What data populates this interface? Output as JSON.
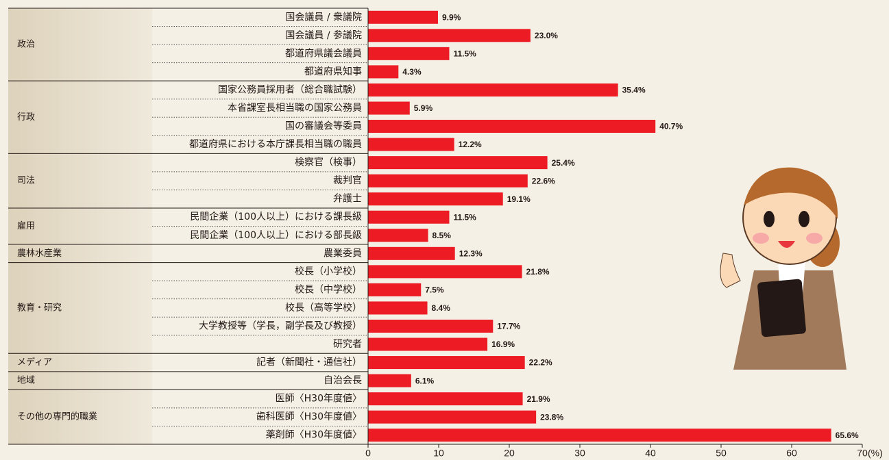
{
  "chart_data": {
    "type": "bar",
    "orientation": "horizontal",
    "color": "#ed1c24",
    "xlim": [
      0,
      70
    ],
    "xticks": [
      0,
      10,
      20,
      30,
      40,
      50,
      60,
      70
    ],
    "x_unit": "(%)",
    "groups": [
      {
        "name": "政治",
        "categories": [
          "国会議員 / 衆議院",
          "国会議員 / 参議院",
          "都道府県議会議員",
          "都道府県知事"
        ],
        "values": [
          9.9,
          23.0,
          11.5,
          4.3
        ],
        "value_labels": [
          "9.9%",
          "23.0%",
          "11.5%",
          "4.3%"
        ]
      },
      {
        "name": "行政",
        "categories": [
          "国家公務員採用者（総合職試験）",
          "本省課室長相当職の国家公務員",
          "国の審議会等委員",
          "都道府県における本庁課長相当職の職員"
        ],
        "values": [
          35.4,
          5.9,
          40.7,
          12.2
        ],
        "value_labels": [
          "35.4%",
          "5.9%",
          "40.7%",
          "12.2%"
        ]
      },
      {
        "name": "司法",
        "categories": [
          "検察官（検事）",
          "裁判官",
          "弁護士"
        ],
        "values": [
          25.4,
          22.6,
          19.1
        ],
        "value_labels": [
          "25.4%",
          "22.6%",
          "19.1%"
        ]
      },
      {
        "name": "雇用",
        "categories": [
          "民間企業（100人以上）における課長級",
          "民間企業（100人以上）における部長級"
        ],
        "values": [
          11.5,
          8.5
        ],
        "value_labels": [
          "11.5%",
          "8.5%"
        ]
      },
      {
        "name": "農林水産業",
        "categories": [
          "農業委員"
        ],
        "values": [
          12.3
        ],
        "value_labels": [
          "12.3%"
        ]
      },
      {
        "name": "教育・研究",
        "categories": [
          "校長（小学校）",
          "校長（中学校）",
          "校長（高等学校）",
          "大学教授等（学長，副学長及び教授）",
          "研究者"
        ],
        "values": [
          21.8,
          7.5,
          8.4,
          17.7,
          16.9
        ],
        "value_labels": [
          "21.8%",
          "7.5%",
          "8.4%",
          "17.7%",
          "16.9%"
        ]
      },
      {
        "name": "メディア",
        "categories": [
          "記者（新聞社・通信社）"
        ],
        "values": [
          22.2
        ],
        "value_labels": [
          "22.2%"
        ]
      },
      {
        "name": "地域",
        "categories": [
          "自治会長"
        ],
        "values": [
          6.1
        ],
        "value_labels": [
          "6.1%"
        ]
      },
      {
        "name": "その他の専門的職業",
        "categories": [
          "医師〈H30年度値〉",
          "歯科医師〈H30年度値〉",
          "薬剤師〈H30年度値〉"
        ],
        "values": [
          21.9,
          23.8,
          65.6
        ],
        "value_labels": [
          "21.9%",
          "23.8%",
          "65.6%"
        ]
      }
    ]
  }
}
